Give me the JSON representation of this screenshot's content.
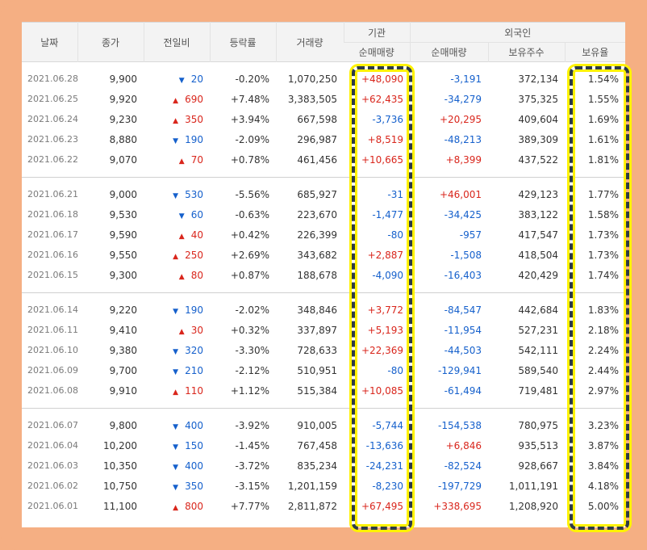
{
  "headers": {
    "date": "날짜",
    "close": "종가",
    "change": "전일비",
    "rate": "등락률",
    "volume": "거래량",
    "institution_group": "기관",
    "inst_net": "순매매량",
    "foreign_group": "외국인",
    "foreign_net": "순매매량",
    "foreign_hold": "보유주수",
    "foreign_ratio": "보유율"
  },
  "rows": [
    {
      "date": "2021.06.28",
      "close": "9,900",
      "dir": "down",
      "arrow": "▼",
      "change": "20",
      "rate": "-0.20%",
      "volume": "1,070,250",
      "inst": "+48,090",
      "foreign": "-3,191",
      "hold": "372,134",
      "ratio": "1.54%"
    },
    {
      "date": "2021.06.25",
      "close": "9,920",
      "dir": "up",
      "arrow": "▲",
      "change": "690",
      "rate": "+7.48%",
      "volume": "3,383,505",
      "inst": "+62,435",
      "foreign": "-34,279",
      "hold": "375,325",
      "ratio": "1.55%"
    },
    {
      "date": "2021.06.24",
      "close": "9,230",
      "dir": "up",
      "arrow": "▲",
      "change": "350",
      "rate": "+3.94%",
      "volume": "667,598",
      "inst": "-3,736",
      "foreign": "+20,295",
      "hold": "409,604",
      "ratio": "1.69%"
    },
    {
      "date": "2021.06.23",
      "close": "8,880",
      "dir": "down",
      "arrow": "▼",
      "change": "190",
      "rate": "-2.09%",
      "volume": "296,987",
      "inst": "+8,519",
      "foreign": "-48,213",
      "hold": "389,309",
      "ratio": "1.61%"
    },
    {
      "date": "2021.06.22",
      "close": "9,070",
      "dir": "up",
      "arrow": "▲",
      "change": "70",
      "rate": "+0.78%",
      "volume": "461,456",
      "inst": "+10,665",
      "foreign": "+8,399",
      "hold": "437,522",
      "ratio": "1.81%"
    },
    {
      "date": "2021.06.21",
      "close": "9,000",
      "dir": "down",
      "arrow": "▼",
      "change": "530",
      "rate": "-5.56%",
      "volume": "685,927",
      "inst": "-31",
      "foreign": "+46,001",
      "hold": "429,123",
      "ratio": "1.77%"
    },
    {
      "date": "2021.06.18",
      "close": "9,530",
      "dir": "down",
      "arrow": "▼",
      "change": "60",
      "rate": "-0.63%",
      "volume": "223,670",
      "inst": "-1,477",
      "foreign": "-34,425",
      "hold": "383,122",
      "ratio": "1.58%"
    },
    {
      "date": "2021.06.17",
      "close": "9,590",
      "dir": "up",
      "arrow": "▲",
      "change": "40",
      "rate": "+0.42%",
      "volume": "226,399",
      "inst": "-80",
      "foreign": "-957",
      "hold": "417,547",
      "ratio": "1.73%"
    },
    {
      "date": "2021.06.16",
      "close": "9,550",
      "dir": "up",
      "arrow": "▲",
      "change": "250",
      "rate": "+2.69%",
      "volume": "343,682",
      "inst": "+2,887",
      "foreign": "-1,508",
      "hold": "418,504",
      "ratio": "1.73%"
    },
    {
      "date": "2021.06.15",
      "close": "9,300",
      "dir": "up",
      "arrow": "▲",
      "change": "80",
      "rate": "+0.87%",
      "volume": "188,678",
      "inst": "-4,090",
      "foreign": "-16,403",
      "hold": "420,429",
      "ratio": "1.74%"
    },
    {
      "date": "2021.06.14",
      "close": "9,220",
      "dir": "down",
      "arrow": "▼",
      "change": "190",
      "rate": "-2.02%",
      "volume": "348,846",
      "inst": "+3,772",
      "foreign": "-84,547",
      "hold": "442,684",
      "ratio": "1.83%"
    },
    {
      "date": "2021.06.11",
      "close": "9,410",
      "dir": "up",
      "arrow": "▲",
      "change": "30",
      "rate": "+0.32%",
      "volume": "337,897",
      "inst": "+5,193",
      "foreign": "-11,954",
      "hold": "527,231",
      "ratio": "2.18%"
    },
    {
      "date": "2021.06.10",
      "close": "9,380",
      "dir": "down",
      "arrow": "▼",
      "change": "320",
      "rate": "-3.30%",
      "volume": "728,633",
      "inst": "+22,369",
      "foreign": "-44,503",
      "hold": "542,111",
      "ratio": "2.24%"
    },
    {
      "date": "2021.06.09",
      "close": "9,700",
      "dir": "down",
      "arrow": "▼",
      "change": "210",
      "rate": "-2.12%",
      "volume": "510,951",
      "inst": "-80",
      "foreign": "-129,941",
      "hold": "589,540",
      "ratio": "2.44%"
    },
    {
      "date": "2021.06.08",
      "close": "9,910",
      "dir": "up",
      "arrow": "▲",
      "change": "110",
      "rate": "+1.12%",
      "volume": "515,384",
      "inst": "+10,085",
      "foreign": "-61,494",
      "hold": "719,481",
      "ratio": "2.97%"
    },
    {
      "date": "2021.06.07",
      "close": "9,800",
      "dir": "down",
      "arrow": "▼",
      "change": "400",
      "rate": "-3.92%",
      "volume": "910,005",
      "inst": "-5,744",
      "foreign": "-154,538",
      "hold": "780,975",
      "ratio": "3.23%"
    },
    {
      "date": "2021.06.04",
      "close": "10,200",
      "dir": "down",
      "arrow": "▼",
      "change": "150",
      "rate": "-1.45%",
      "volume": "767,458",
      "inst": "-13,636",
      "foreign": "+6,846",
      "hold": "935,513",
      "ratio": "3.87%"
    },
    {
      "date": "2021.06.03",
      "close": "10,350",
      "dir": "down",
      "arrow": "▼",
      "change": "400",
      "rate": "-3.72%",
      "volume": "835,234",
      "inst": "-24,231",
      "foreign": "-82,524",
      "hold": "928,667",
      "ratio": "3.84%"
    },
    {
      "date": "2021.06.02",
      "close": "10,750",
      "dir": "down",
      "arrow": "▼",
      "change": "350",
      "rate": "-3.15%",
      "volume": "1,201,159",
      "inst": "-8,230",
      "foreign": "-197,729",
      "hold": "1,011,191",
      "ratio": "4.18%"
    },
    {
      "date": "2021.06.01",
      "close": "11,100",
      "dir": "up",
      "arrow": "▲",
      "change": "800",
      "rate": "+7.77%",
      "volume": "2,811,872",
      "inst": "+67,495",
      "foreign": "+338,695",
      "hold": "1,208,920",
      "ratio": "5.00%"
    }
  ],
  "colors": {
    "up": "#d9261c",
    "down": "#1560cc",
    "highlight_fill": "#fff200",
    "highlight_dash": "#2d3b46",
    "frame": "#f5af83"
  }
}
